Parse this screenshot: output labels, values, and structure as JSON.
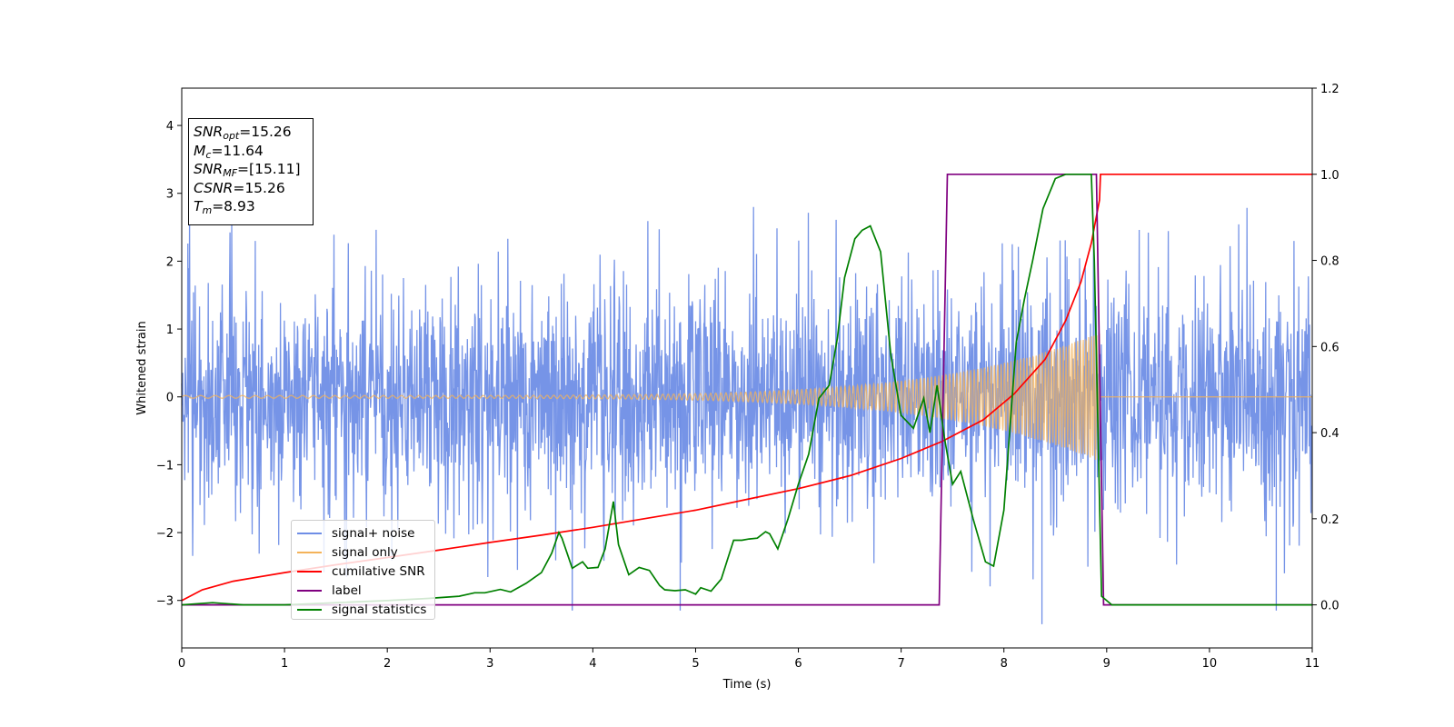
{
  "chart_data": {
    "type": "line",
    "title": "",
    "xlabel": "Time (s)",
    "ylabel": "Whitened strain",
    "y2label": "",
    "xlim": [
      0,
      11
    ],
    "ylim": [
      -3.7,
      4.55
    ],
    "y2lim": [
      -0.1,
      1.2
    ],
    "x_ticks": [
      0,
      1,
      2,
      3,
      4,
      5,
      6,
      7,
      8,
      9,
      10,
      11
    ],
    "x_tick_labels": [
      "0",
      "1",
      "2",
      "3",
      "4",
      "5",
      "6",
      "7",
      "8",
      "9",
      "10",
      "11"
    ],
    "y_ticks": [
      -3,
      -2,
      -1,
      0,
      1,
      2,
      3,
      4
    ],
    "y_tick_labels": [
      "−3",
      "−2",
      "−1",
      "0",
      "1",
      "2",
      "3",
      "4"
    ],
    "y2_ticks": [
      0.0,
      0.2,
      0.4,
      0.6,
      0.8,
      1.0,
      1.2
    ],
    "y2_tick_labels": [
      "0.0",
      "0.2",
      "0.4",
      "0.6",
      "0.8",
      "1.0",
      "1.2"
    ],
    "grid": false,
    "legend_position": "lower-left",
    "annotation_box": {
      "position": "top-left",
      "lines": [
        {
          "symbol": "SNR",
          "sub": "opt",
          "text": "=15.26"
        },
        {
          "symbol": "M",
          "sub": "c",
          "text": "=11.64"
        },
        {
          "symbol": "SNR",
          "sub": "MF",
          "text": "=[15.11]"
        },
        {
          "symbol": "CSNR",
          "sub": "",
          "text": "=15.26"
        },
        {
          "symbol": "T",
          "sub": "m",
          "text": "=8.93"
        }
      ]
    },
    "series": [
      {
        "name": "signal+ noise",
        "color": "#6f8ee6",
        "axis": "left",
        "kind": "noise",
        "description_values": {
          "typical_abs": 1.3,
          "min": -3.35,
          "max": 3.1,
          "spike_x": [
            3.8,
            4.85,
            8.37,
            10.65
          ],
          "spike_y": [
            -3.15,
            -3.15,
            -3.35,
            -3.15
          ]
        }
      },
      {
        "name": "signal only",
        "color": "#f4b35a",
        "axis": "left",
        "kind": "chirp",
        "chirp": {
          "amplitude_start": 0.02,
          "amplitude_end": 0.95,
          "end_time": 8.93,
          "freq_start_hz": 6.5,
          "freq_end_hz": 40
        }
      },
      {
        "name": "cumilative SNR",
        "color": "#ff0000",
        "axis": "right",
        "x": [
          0,
          0.2,
          0.5,
          1,
          1.5,
          2,
          2.5,
          3,
          3.5,
          4,
          4.5,
          5,
          5.5,
          6,
          6.5,
          7,
          7.4,
          7.8,
          8.1,
          8.4,
          8.6,
          8.75,
          8.85,
          8.93,
          8.94,
          11
        ],
        "y": [
          0.01,
          0.035,
          0.055,
          0.075,
          0.093,
          0.11,
          0.127,
          0.145,
          0.162,
          0.18,
          0.2,
          0.22,
          0.245,
          0.27,
          0.3,
          0.34,
          0.38,
          0.43,
          0.49,
          0.57,
          0.66,
          0.75,
          0.84,
          0.94,
          1.0,
          1.0
        ]
      },
      {
        "name": "label",
        "color": "#800080",
        "axis": "right",
        "x": [
          0,
          7.37,
          7.45,
          8.9,
          8.97,
          11
        ],
        "y": [
          0,
          0,
          1,
          1,
          0,
          0
        ]
      },
      {
        "name": "signal statistics",
        "color": "#008000",
        "axis": "right",
        "x": [
          0,
          0.3,
          0.6,
          1.0,
          1.5,
          2.0,
          2.4,
          2.7,
          2.85,
          2.95,
          3.1,
          3.2,
          3.35,
          3.5,
          3.6,
          3.67,
          3.7,
          3.8,
          3.9,
          3.95,
          4.05,
          4.12,
          4.2,
          4.25,
          4.35,
          4.45,
          4.55,
          4.65,
          4.7,
          4.8,
          4.9,
          5.0,
          5.05,
          5.15,
          5.25,
          5.37,
          5.45,
          5.52,
          5.6,
          5.68,
          5.72,
          5.8,
          5.9,
          6.0,
          6.1,
          6.2,
          6.3,
          6.38,
          6.45,
          6.55,
          6.62,
          6.7,
          6.8,
          6.9,
          7.0,
          7.12,
          7.22,
          7.28,
          7.35,
          7.42,
          7.5,
          7.58,
          7.7,
          7.82,
          7.9,
          8.0,
          8.12,
          8.2,
          8.28,
          8.38,
          8.5,
          8.6,
          8.7,
          8.85,
          8.88,
          8.95,
          9.05,
          9.2,
          11
        ],
        "y": [
          0.0,
          0.005,
          0.0,
          0.0,
          0.005,
          0.01,
          0.015,
          0.02,
          0.028,
          0.028,
          0.036,
          0.03,
          0.05,
          0.075,
          0.12,
          0.168,
          0.155,
          0.085,
          0.1,
          0.085,
          0.087,
          0.13,
          0.24,
          0.14,
          0.07,
          0.087,
          0.08,
          0.045,
          0.035,
          0.033,
          0.035,
          0.025,
          0.04,
          0.032,
          0.06,
          0.15,
          0.15,
          0.153,
          0.155,
          0.17,
          0.165,
          0.13,
          0.2,
          0.28,
          0.35,
          0.48,
          0.51,
          0.62,
          0.76,
          0.85,
          0.87,
          0.88,
          0.82,
          0.58,
          0.44,
          0.41,
          0.48,
          0.4,
          0.51,
          0.39,
          0.28,
          0.31,
          0.2,
          0.1,
          0.09,
          0.22,
          0.61,
          0.71,
          0.8,
          0.92,
          0.99,
          1.0,
          1.0,
          1.0,
          0.8,
          0.02,
          0.0,
          0.0,
          0.0
        ]
      }
    ],
    "legend": [
      {
        "label": "signal+ noise",
        "color": "#6f8ee6"
      },
      {
        "label": "signal only",
        "color": "#f4b35a"
      },
      {
        "label": "cumilative SNR",
        "color": "#ff0000"
      },
      {
        "label": "label",
        "color": "#800080"
      },
      {
        "label": "signal statistics",
        "color": "#008000"
      }
    ]
  }
}
